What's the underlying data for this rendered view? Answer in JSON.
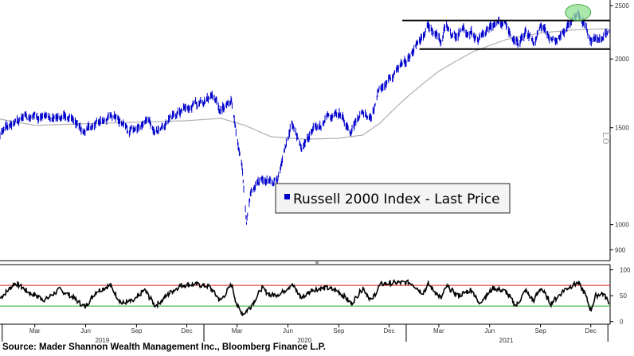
{
  "chart_data": [
    {
      "type": "line",
      "title": "",
      "legend": "Russell 2000 Index - Last Price",
      "legend_placement": "center",
      "y_scale": "log",
      "ylim": [
        860,
        2560
      ],
      "y_ticks": [
        "900",
        "1000",
        "1500",
        "2000",
        "2500"
      ],
      "y_axis_side": "right",
      "y_axis_partial_label": "Lo",
      "x_range": [
        "2018-12-28",
        "2022-01-05"
      ],
      "series": [
        {
          "role": "price",
          "color": "#0000cc",
          "points": [
            [
              "2018-12-28",
              1440
            ],
            [
              "2019-01-15",
              1520
            ],
            [
              "2019-02-05",
              1555
            ],
            [
              "2019-02-25",
              1590
            ],
            [
              "2019-03-20",
              1555
            ],
            [
              "2019-04-15",
              1575
            ],
            [
              "2019-05-05",
              1580
            ],
            [
              "2019-05-30",
              1470
            ],
            [
              "2019-06-20",
              1545
            ],
            [
              "2019-07-25",
              1575
            ],
            [
              "2019-08-15",
              1470
            ],
            [
              "2019-08-28",
              1475
            ],
            [
              "2019-09-20",
              1550
            ],
            [
              "2019-10-05",
              1465
            ],
            [
              "2019-10-31",
              1560
            ],
            [
              "2019-11-25",
              1625
            ],
            [
              "2019-12-31",
              1670
            ],
            [
              "2020-01-17",
              1700
            ],
            [
              "2020-01-31",
              1620
            ],
            [
              "2020-02-20",
              1700
            ],
            [
              "2020-02-28",
              1480
            ],
            [
              "2020-03-09",
              1300
            ],
            [
              "2020-03-18",
              1010
            ],
            [
              "2020-03-26",
              1150
            ],
            [
              "2020-04-15",
              1200
            ],
            [
              "2020-05-13",
              1210
            ],
            [
              "2020-05-29",
              1395
            ],
            [
              "2020-06-08",
              1530
            ],
            [
              "2020-06-26",
              1360
            ],
            [
              "2020-07-15",
              1470
            ],
            [
              "2020-08-15",
              1560
            ],
            [
              "2020-09-02",
              1590
            ],
            [
              "2020-09-24",
              1490
            ],
            [
              "2020-10-15",
              1620
            ],
            [
              "2020-10-30",
              1540
            ],
            [
              "2020-11-10",
              1740
            ],
            [
              "2020-11-30",
              1820
            ],
            [
              "2020-12-31",
              1975
            ],
            [
              "2021-01-26",
              2150
            ],
            [
              "2021-02-09",
              2290
            ],
            [
              "2021-03-05",
              2160
            ],
            [
              "2021-03-15",
              2340
            ],
            [
              "2021-03-24",
              2190
            ],
            [
              "2021-04-15",
              2270
            ],
            [
              "2021-05-12",
              2170
            ],
            [
              "2021-06-08",
              2330
            ],
            [
              "2021-06-30",
              2310
            ],
            [
              "2021-07-19",
              2140
            ],
            [
              "2021-08-05",
              2240
            ],
            [
              "2021-08-19",
              2150
            ],
            [
              "2021-09-02",
              2300
            ],
            [
              "2021-09-20",
              2180
            ],
            [
              "2021-10-04",
              2200
            ],
            [
              "2021-10-15",
              2260
            ],
            [
              "2021-11-08",
              2440
            ],
            [
              "2021-11-17",
              2370
            ],
            [
              "2021-12-01",
              2160
            ],
            [
              "2021-12-20",
              2150
            ],
            [
              "2022-01-03",
              2260
            ]
          ]
        },
        {
          "role": "moving-average",
          "color": "#b0b0b0",
          "points": [
            [
              "2018-12-28",
              1555
            ],
            [
              "2019-03-01",
              1515
            ],
            [
              "2019-06-01",
              1525
            ],
            [
              "2019-09-01",
              1535
            ],
            [
              "2019-12-01",
              1545
            ],
            [
              "2020-02-01",
              1560
            ],
            [
              "2020-03-15",
              1515
            ],
            [
              "2020-05-01",
              1445
            ],
            [
              "2020-07-01",
              1430
            ],
            [
              "2020-09-01",
              1435
            ],
            [
              "2020-10-15",
              1455
            ],
            [
              "2020-11-15",
              1530
            ],
            [
              "2021-01-01",
              1700
            ],
            [
              "2021-03-01",
              1900
            ],
            [
              "2021-05-01",
              2060
            ],
            [
              "2021-07-01",
              2170
            ],
            [
              "2021-09-01",
              2230
            ],
            [
              "2021-11-01",
              2260
            ],
            [
              "2022-01-03",
              2270
            ]
          ]
        }
      ],
      "annotations": {
        "support_resistance": [
          {
            "y": 2350,
            "x_start": "2020-12-25",
            "x_end": "2022-01-05"
          },
          {
            "y": 2085,
            "x_start": "2021-01-25",
            "x_end": "2022-01-05"
          }
        ],
        "highlight_ellipse": {
          "x": "2021-11-08",
          "y": 2430,
          "fill": "#90e090"
        }
      }
    },
    {
      "type": "line",
      "title": "",
      "ylim": [
        -5,
        110
      ],
      "y_ticks": [
        "0",
        "50",
        "100"
      ],
      "y_axis_side": "right",
      "series": [
        {
          "role": "oscillator",
          "color": "#000000",
          "points": [
            [
              "2018-12-28",
              45
            ],
            [
              "2019-01-25",
              75
            ],
            [
              "2019-02-20",
              55
            ],
            [
              "2019-03-20",
              42
            ],
            [
              "2019-04-15",
              62
            ],
            [
              "2019-05-05",
              50
            ],
            [
              "2019-05-31",
              28
            ],
            [
              "2019-06-20",
              58
            ],
            [
              "2019-07-15",
              70
            ],
            [
              "2019-08-05",
              35
            ],
            [
              "2019-08-28",
              40
            ],
            [
              "2019-09-15",
              62
            ],
            [
              "2019-10-05",
              30
            ],
            [
              "2019-10-31",
              55
            ],
            [
              "2019-11-20",
              70
            ],
            [
              "2019-12-15",
              72
            ],
            [
              "2020-01-10",
              68
            ],
            [
              "2020-01-31",
              40
            ],
            [
              "2020-02-20",
              72
            ],
            [
              "2020-03-01",
              30
            ],
            [
              "2020-03-12",
              15
            ],
            [
              "2020-03-25",
              28
            ],
            [
              "2020-04-15",
              65
            ],
            [
              "2020-05-01",
              50
            ],
            [
              "2020-05-20",
              55
            ],
            [
              "2020-06-08",
              72
            ],
            [
              "2020-06-26",
              45
            ],
            [
              "2020-07-15",
              62
            ],
            [
              "2020-08-10",
              65
            ],
            [
              "2020-09-01",
              58
            ],
            [
              "2020-09-24",
              35
            ],
            [
              "2020-10-15",
              65
            ],
            [
              "2020-10-30",
              40
            ],
            [
              "2020-11-15",
              72
            ],
            [
              "2020-12-10",
              75
            ],
            [
              "2021-01-10",
              75
            ],
            [
              "2021-01-31",
              55
            ],
            [
              "2021-02-10",
              72
            ],
            [
              "2021-03-05",
              45
            ],
            [
              "2021-03-15",
              68
            ],
            [
              "2021-04-05",
              50
            ],
            [
              "2021-04-30",
              62
            ],
            [
              "2021-05-12",
              35
            ],
            [
              "2021-06-08",
              65
            ],
            [
              "2021-06-30",
              58
            ],
            [
              "2021-07-19",
              30
            ],
            [
              "2021-08-05",
              60
            ],
            [
              "2021-08-19",
              40
            ],
            [
              "2021-09-02",
              65
            ],
            [
              "2021-09-20",
              35
            ],
            [
              "2021-10-15",
              62
            ],
            [
              "2021-11-08",
              75
            ],
            [
              "2021-11-20",
              55
            ],
            [
              "2021-12-01",
              22
            ],
            [
              "2021-12-10",
              50
            ],
            [
              "2021-12-22",
              55
            ],
            [
              "2022-01-03",
              38
            ]
          ]
        }
      ],
      "reference_lines": [
        {
          "y": 70,
          "color": "#dd2222"
        },
        {
          "y": 30,
          "color": "#22aa22"
        }
      ]
    }
  ],
  "x_axis": {
    "tick_labels": [
      {
        "label": "Mar",
        "date": "2019-03-01"
      },
      {
        "label": "Jun",
        "date": "2019-06-01"
      },
      {
        "label": "Sep",
        "date": "2019-09-01"
      },
      {
        "label": "Dec",
        "date": "2019-12-01"
      },
      {
        "label": "Mar",
        "date": "2020-03-01"
      },
      {
        "label": "Jun",
        "date": "2020-06-01"
      },
      {
        "label": "Sep",
        "date": "2020-09-01"
      },
      {
        "label": "Dec",
        "date": "2020-12-01"
      },
      {
        "label": "Mar",
        "date": "2021-03-01"
      },
      {
        "label": "Jun",
        "date": "2021-06-01"
      },
      {
        "label": "Sep",
        "date": "2021-09-01"
      },
      {
        "label": "Dec",
        "date": "2021-12-01"
      }
    ],
    "year_labels": [
      {
        "label": "2019",
        "date": "2019-07-01"
      },
      {
        "label": "2020",
        "date": "2020-07-01"
      },
      {
        "label": "2021",
        "date": "2021-07-01"
      }
    ],
    "year_boundaries": [
      "2019-01-01",
      "2020-01-01",
      "2021-01-01",
      "2022-01-01"
    ]
  },
  "source": "Source: Mader Shannon Wealth Management Inc., Bloomberg Finance L.P."
}
